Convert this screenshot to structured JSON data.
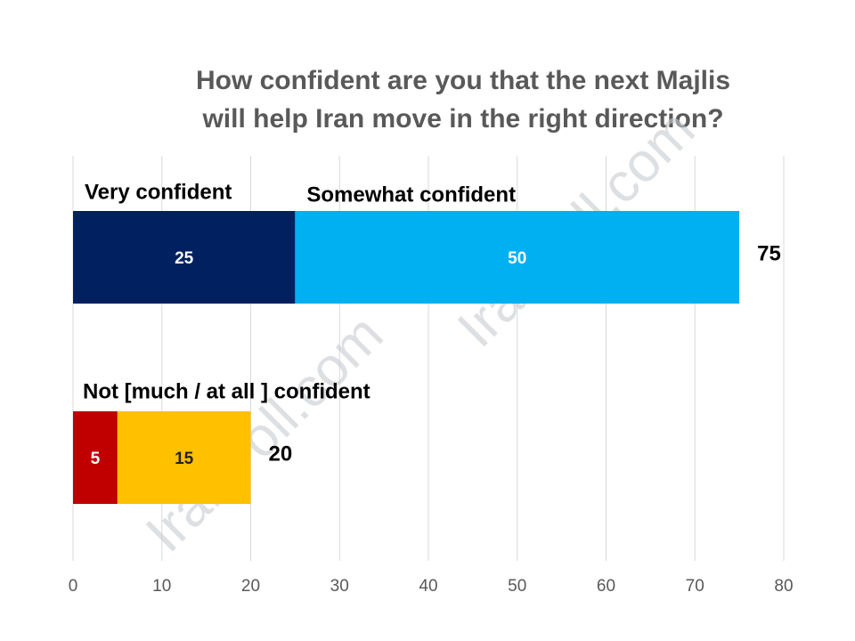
{
  "chart_data": {
    "type": "bar",
    "orientation": "horizontal",
    "stacked": true,
    "title": [
      "How confident are you that the next Majlis",
      "will help Iran move in the right direction?"
    ],
    "categories": [
      null,
      "Not [much / at all ] confident"
    ],
    "series": [
      {
        "name": "Very confident",
        "color": "#002060",
        "values": [
          25,
          null
        ]
      },
      {
        "name": "Somewhat confident",
        "color": "#00b0f0",
        "values": [
          50,
          null
        ]
      },
      {
        "color": "#c00000",
        "values": [
          null,
          5
        ]
      },
      {
        "color": "#ffc000",
        "values": [
          null,
          15
        ]
      }
    ],
    "totals": [
      75,
      20
    ],
    "xlim": [
      0,
      80
    ],
    "xticks": [
      0,
      10,
      20,
      30,
      40,
      50,
      60,
      70,
      80
    ],
    "grid": true,
    "watermark": "IranPoll.com"
  }
}
